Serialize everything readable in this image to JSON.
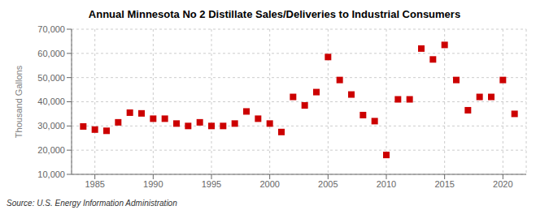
{
  "chart_data": {
    "type": "scatter",
    "title": "Annual Minnesota No 2 Distillate Sales/Deliveries to Industrial Consumers",
    "ylabel": "Thousand Gallons",
    "annotations": [
      "Source: U.S. Energy Information Administration"
    ],
    "x": [
      1984,
      1985,
      1986,
      1987,
      1988,
      1989,
      1990,
      1991,
      1992,
      1993,
      1994,
      1995,
      1996,
      1997,
      1998,
      1999,
      2000,
      2001,
      2002,
      2003,
      2004,
      2005,
      2006,
      2007,
      2008,
      2009,
      2010,
      2011,
      2012,
      2013,
      2014,
      2015,
      2016,
      2017,
      2018,
      2019,
      2020,
      2021
    ],
    "values": [
      29800,
      28500,
      28000,
      31500,
      35500,
      35200,
      33000,
      33000,
      31000,
      30000,
      31500,
      30000,
      30000,
      31000,
      36000,
      33000,
      31000,
      27500,
      42000,
      38500,
      44000,
      58500,
      49000,
      43000,
      34500,
      32000,
      18000,
      41000,
      41000,
      62000,
      57500,
      63500,
      49000,
      36500,
      42000,
      42000,
      49000,
      35000
    ],
    "color": "#cc0000",
    "marker": "square",
    "xlim": [
      1983,
      2022
    ],
    "xticks": [
      1985,
      1990,
      1995,
      2000,
      2005,
      2010,
      2015,
      2020
    ],
    "ylim": [
      10000,
      70000
    ],
    "yticks": [
      {
        "value": 10000,
        "label": "10,000"
      },
      {
        "value": 20000,
        "label": "20,000"
      },
      {
        "value": 30000,
        "label": "30,000"
      },
      {
        "value": 40000,
        "label": "40,000"
      },
      {
        "value": 50000,
        "label": "50,000"
      },
      {
        "value": 60000,
        "label": "60,000"
      },
      {
        "value": 70000,
        "label": "70,000"
      }
    ],
    "grid": true
  }
}
